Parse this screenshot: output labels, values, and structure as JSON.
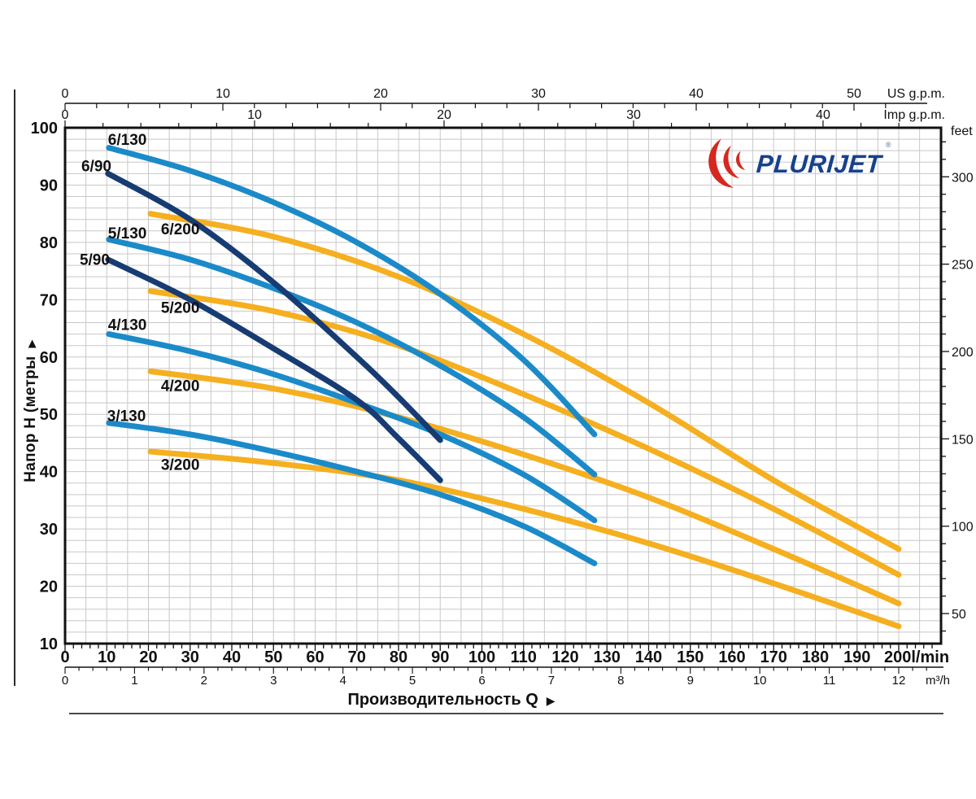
{
  "logo": {
    "brand": "PLURIJET",
    "registered": "®",
    "swoosh_color": "#d6281e",
    "text_color": "#16418c"
  },
  "axis_titles": {
    "y": "Напор H (метры",
    "y_arrow": "▶",
    "x": "Производительность Q",
    "x_arrow": "▶"
  },
  "chart_data": {
    "type": "line",
    "title": "PLURIJET pump performance curves",
    "xlabel": "Производительность Q",
    "ylabel": "Напор H (метры",
    "grid": {
      "x_step_lmin": 5,
      "y_step_m": 2,
      "on": true
    },
    "legend_position": "labels-on-curves",
    "x_range_lmin": [
      0,
      210
    ],
    "y_range_m": [
      10,
      100
    ],
    "axes": {
      "lmin": {
        "unit": "l/min",
        "labels": [
          0,
          10,
          20,
          30,
          40,
          50,
          60,
          70,
          80,
          90,
          100,
          110,
          120,
          130,
          140,
          150,
          160,
          170,
          180,
          190
        ],
        "end_label": "200l/min",
        "major_step": 10,
        "minor_step": 2
      },
      "m3h": {
        "unit": "m³/h",
        "labels": [
          0,
          1,
          2,
          3,
          4,
          5,
          6,
          7,
          8,
          9,
          10,
          11,
          12
        ],
        "lmin_per_unit": 16.6667,
        "major_step": 1,
        "minor_step": 0.2
      },
      "us": {
        "unit": "US g.p.m.",
        "labels": [
          0,
          10,
          20,
          30,
          40,
          50
        ],
        "lmin_per_unit": 3.7854,
        "major_step": 10,
        "minor_step": 2
      },
      "imp": {
        "unit": "Imp g.p.m.",
        "labels": [
          0,
          10,
          20,
          30,
          40
        ],
        "lmin_per_unit": 4.5461,
        "major_step": 10,
        "minor_step": 2
      },
      "metres": {
        "unit": "м",
        "labels": [
          100,
          90,
          80,
          70,
          60,
          50,
          40,
          30,
          20,
          10
        ]
      },
      "feet": {
        "unit": "feet",
        "labels": [
          300,
          250,
          200,
          150,
          100,
          50
        ],
        "m_per_unit": 0.3048,
        "major_step": 50,
        "minor_step": 10
      }
    },
    "series": [
      {
        "name": "6/200",
        "color": "#F5AF1F",
        "label_q": 23,
        "label_h": 81.4,
        "points": [
          [
            20.5,
            85
          ],
          [
            50,
            81
          ],
          [
            80,
            74
          ],
          [
            110,
            64
          ],
          [
            140,
            52
          ],
          [
            170,
            38.5
          ],
          [
            200,
            26.5
          ]
        ]
      },
      {
        "name": "5/200",
        "color": "#F5AF1F",
        "label_q": 23,
        "label_h": 67.7,
        "points": [
          [
            20.5,
            71.5
          ],
          [
            50,
            68
          ],
          [
            80,
            62
          ],
          [
            110,
            53.5
          ],
          [
            140,
            44
          ],
          [
            170,
            33.5
          ],
          [
            200,
            22
          ]
        ]
      },
      {
        "name": "4/200",
        "color": "#F5AF1F",
        "label_q": 23,
        "label_h": 54.1,
        "points": [
          [
            20.5,
            57.5
          ],
          [
            50,
            54.5
          ],
          [
            80,
            49.5
          ],
          [
            110,
            43
          ],
          [
            140,
            35.5
          ],
          [
            170,
            26.5
          ],
          [
            200,
            17
          ]
        ]
      },
      {
        "name": "3/200",
        "color": "#F5AF1F",
        "label_q": 23,
        "label_h": 40.3,
        "points": [
          [
            20.5,
            43.5
          ],
          [
            50,
            41.5
          ],
          [
            80,
            38.5
          ],
          [
            110,
            33.5
          ],
          [
            140,
            27.5
          ],
          [
            170,
            20.5
          ],
          [
            200,
            13
          ]
        ]
      },
      {
        "name": "6/130",
        "color": "#1B8AC9",
        "label_q": 10.3,
        "label_h": 97.0,
        "points": [
          [
            10.5,
            96.5
          ],
          [
            30,
            92.5
          ],
          [
            50,
            87
          ],
          [
            70,
            80
          ],
          [
            90,
            71
          ],
          [
            110,
            59.5
          ],
          [
            127,
            46.5
          ]
        ]
      },
      {
        "name": "5/130",
        "color": "#1B8AC9",
        "label_q": 10.3,
        "label_h": 80.7,
        "points": [
          [
            10.5,
            80.5
          ],
          [
            30,
            77
          ],
          [
            50,
            72
          ],
          [
            70,
            66
          ],
          [
            90,
            58.5
          ],
          [
            110,
            49.5
          ],
          [
            127,
            39.5
          ]
        ]
      },
      {
        "name": "4/130",
        "color": "#1B8AC9",
        "label_q": 10.3,
        "label_h": 64.7,
        "points": [
          [
            10.5,
            64
          ],
          [
            30,
            61
          ],
          [
            50,
            57
          ],
          [
            70,
            52
          ],
          [
            90,
            46.5
          ],
          [
            110,
            39.5
          ],
          [
            127,
            31.5
          ]
        ]
      },
      {
        "name": "3/130",
        "color": "#1B8AC9",
        "label_q": 10.1,
        "label_h": 48.8,
        "points": [
          [
            10.5,
            48.5
          ],
          [
            30,
            46.5
          ],
          [
            50,
            43.5
          ],
          [
            70,
            40
          ],
          [
            90,
            36
          ],
          [
            110,
            30.5
          ],
          [
            127,
            24
          ]
        ]
      },
      {
        "name": "6/90",
        "color": "#173B73",
        "label_q": 3.9,
        "label_h": 92.4,
        "points": [
          [
            10.3,
            92
          ],
          [
            30,
            84
          ],
          [
            50,
            73
          ],
          [
            70,
            60
          ],
          [
            80,
            53
          ],
          [
            90,
            45.5
          ]
        ]
      },
      {
        "name": "5/90",
        "color": "#173B73",
        "label_q": 3.5,
        "label_h": 76.1,
        "points": [
          [
            10.3,
            77
          ],
          [
            30,
            70
          ],
          [
            50,
            61.5
          ],
          [
            70,
            52.5
          ],
          [
            80,
            45.8
          ],
          [
            90,
            38.5
          ]
        ]
      }
    ]
  }
}
